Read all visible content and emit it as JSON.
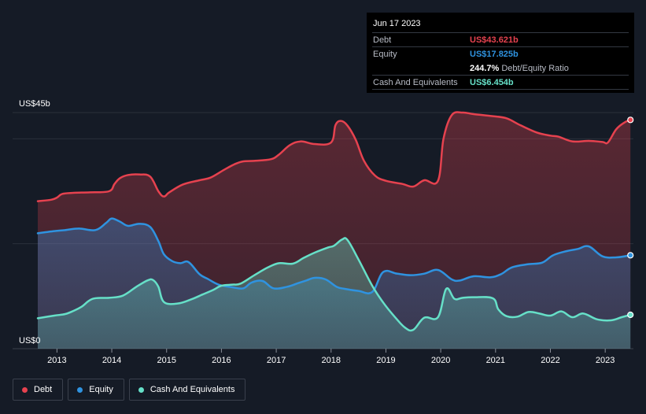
{
  "tooltip": {
    "date": "Jun 17 2023",
    "debt_label": "Debt",
    "debt_value": "US$43.621b",
    "equity_label": "Equity",
    "equity_value": "US$17.825b",
    "ratio_value": "244.7%",
    "ratio_label": "Debt/Equity Ratio",
    "cash_label": "Cash And Equivalents",
    "cash_value": "US$6.454b"
  },
  "legend": {
    "debt": "Debt",
    "equity": "Equity",
    "cash": "Cash And Equivalents"
  },
  "colors": {
    "debt": "#e6424f",
    "equity": "#2f93e0",
    "cash": "#66e0c8",
    "background": "#151b26"
  },
  "chart_data": {
    "type": "area",
    "y_top_label": "US$45b",
    "y_bottom_label": "US$0",
    "ylim": [
      0,
      45
    ],
    "xlim": [
      2012.65,
      2023.5
    ],
    "x_ticks": [
      "2013",
      "2014",
      "2015",
      "2016",
      "2017",
      "2018",
      "2019",
      "2020",
      "2021",
      "2022",
      "2023"
    ],
    "grid": true,
    "series": [
      {
        "name": "Debt",
        "x": [
          2012.65,
          2012.9,
          2013.0,
          2013.1,
          2013.3,
          2013.6,
          2013.95,
          2014.05,
          2014.15,
          2014.3,
          2014.5,
          2014.7,
          2014.85,
          2014.95,
          2015.05,
          2015.3,
          2015.6,
          2015.8,
          2016.05,
          2016.25,
          2016.4,
          2016.6,
          2016.9,
          2017.05,
          2017.25,
          2017.45,
          2017.7,
          2018.0,
          2018.08,
          2018.18,
          2018.3,
          2018.45,
          2018.6,
          2018.8,
          2019.0,
          2019.3,
          2019.5,
          2019.7,
          2019.95,
          2020.05,
          2020.2,
          2020.4,
          2020.6,
          2020.95,
          2021.2,
          2021.45,
          2021.75,
          2022.0,
          2022.15,
          2022.4,
          2022.7,
          2022.95,
          2023.05,
          2023.2,
          2023.35,
          2023.46
        ],
        "values": [
          28.1,
          28.4,
          28.8,
          29.5,
          29.7,
          29.8,
          30.0,
          31.4,
          32.5,
          33.1,
          33.2,
          32.8,
          30.0,
          29.0,
          29.8,
          31.3,
          32.1,
          32.6,
          34.1,
          35.2,
          35.7,
          35.8,
          36.1,
          37.0,
          38.8,
          39.5,
          39.0,
          39.3,
          42.6,
          43.4,
          42.5,
          39.8,
          35.8,
          33.0,
          32.0,
          31.4,
          30.9,
          32.1,
          32.0,
          40.0,
          44.5,
          45.0,
          44.7,
          44.3,
          43.9,
          42.6,
          41.2,
          40.6,
          40.4,
          39.5,
          39.6,
          39.4,
          39.3,
          41.8,
          43.1,
          43.6
        ]
      },
      {
        "name": "Equity",
        "x": [
          2012.65,
          2012.95,
          2013.15,
          2013.4,
          2013.7,
          2013.9,
          2014.0,
          2014.15,
          2014.3,
          2014.5,
          2014.7,
          2014.85,
          2014.95,
          2015.1,
          2015.25,
          2015.4,
          2015.6,
          2015.75,
          2015.95,
          2016.2,
          2016.4,
          2016.55,
          2016.75,
          2016.95,
          2017.2,
          2017.4,
          2017.55,
          2017.7,
          2017.9,
          2018.1,
          2018.25,
          2018.5,
          2018.75,
          2018.95,
          2019.2,
          2019.45,
          2019.7,
          2019.95,
          2020.2,
          2020.35,
          2020.6,
          2020.9,
          2021.1,
          2021.3,
          2021.6,
          2021.85,
          2022.05,
          2022.3,
          2022.5,
          2022.7,
          2022.95,
          2023.2,
          2023.46
        ],
        "values": [
          22.0,
          22.4,
          22.6,
          22.9,
          22.6,
          24.0,
          24.8,
          24.2,
          23.4,
          23.8,
          23.2,
          20.5,
          18.0,
          16.7,
          16.3,
          16.5,
          14.2,
          13.3,
          12.2,
          11.7,
          11.5,
          12.6,
          12.9,
          11.5,
          11.8,
          12.5,
          13.0,
          13.5,
          13.2,
          11.8,
          11.4,
          11.0,
          10.8,
          14.6,
          14.3,
          14.0,
          14.3,
          15.0,
          13.2,
          13.0,
          13.8,
          13.6,
          14.2,
          15.5,
          16.1,
          16.4,
          17.8,
          18.6,
          19.0,
          19.5,
          17.6,
          17.4,
          17.8
        ]
      },
      {
        "name": "Cash And Equivalents",
        "x": [
          2012.65,
          2012.95,
          2013.15,
          2013.3,
          2013.45,
          2013.65,
          2013.95,
          2014.2,
          2014.45,
          2014.65,
          2014.75,
          2014.85,
          2014.95,
          2015.2,
          2015.45,
          2015.65,
          2015.85,
          2016.0,
          2016.2,
          2016.35,
          2016.6,
          2016.85,
          2017.05,
          2017.3,
          2017.5,
          2017.7,
          2017.95,
          2018.05,
          2018.2,
          2018.3,
          2018.5,
          2018.75,
          2018.95,
          2019.15,
          2019.35,
          2019.5,
          2019.7,
          2019.95,
          2020.1,
          2020.25,
          2020.4,
          2020.6,
          2020.95,
          2021.05,
          2021.2,
          2021.4,
          2021.6,
          2021.8,
          2022.0,
          2022.2,
          2022.4,
          2022.6,
          2022.85,
          2023.1,
          2023.3,
          2023.46
        ],
        "values": [
          5.8,
          6.3,
          6.6,
          7.2,
          8.0,
          9.5,
          9.7,
          10.1,
          11.8,
          13.0,
          13.1,
          11.8,
          8.9,
          8.6,
          9.4,
          10.3,
          11.2,
          12.0,
          12.2,
          12.4,
          14.0,
          15.5,
          16.3,
          16.2,
          17.3,
          18.3,
          19.3,
          19.6,
          20.8,
          20.7,
          17.0,
          12.0,
          8.8,
          6.2,
          4.0,
          3.6,
          5.9,
          6.0,
          11.4,
          9.5,
          9.7,
          9.8,
          9.6,
          7.5,
          6.2,
          6.1,
          7.0,
          6.7,
          6.3,
          7.1,
          6.0,
          6.7,
          5.6,
          5.4,
          6.0,
          6.454
        ]
      }
    ]
  }
}
